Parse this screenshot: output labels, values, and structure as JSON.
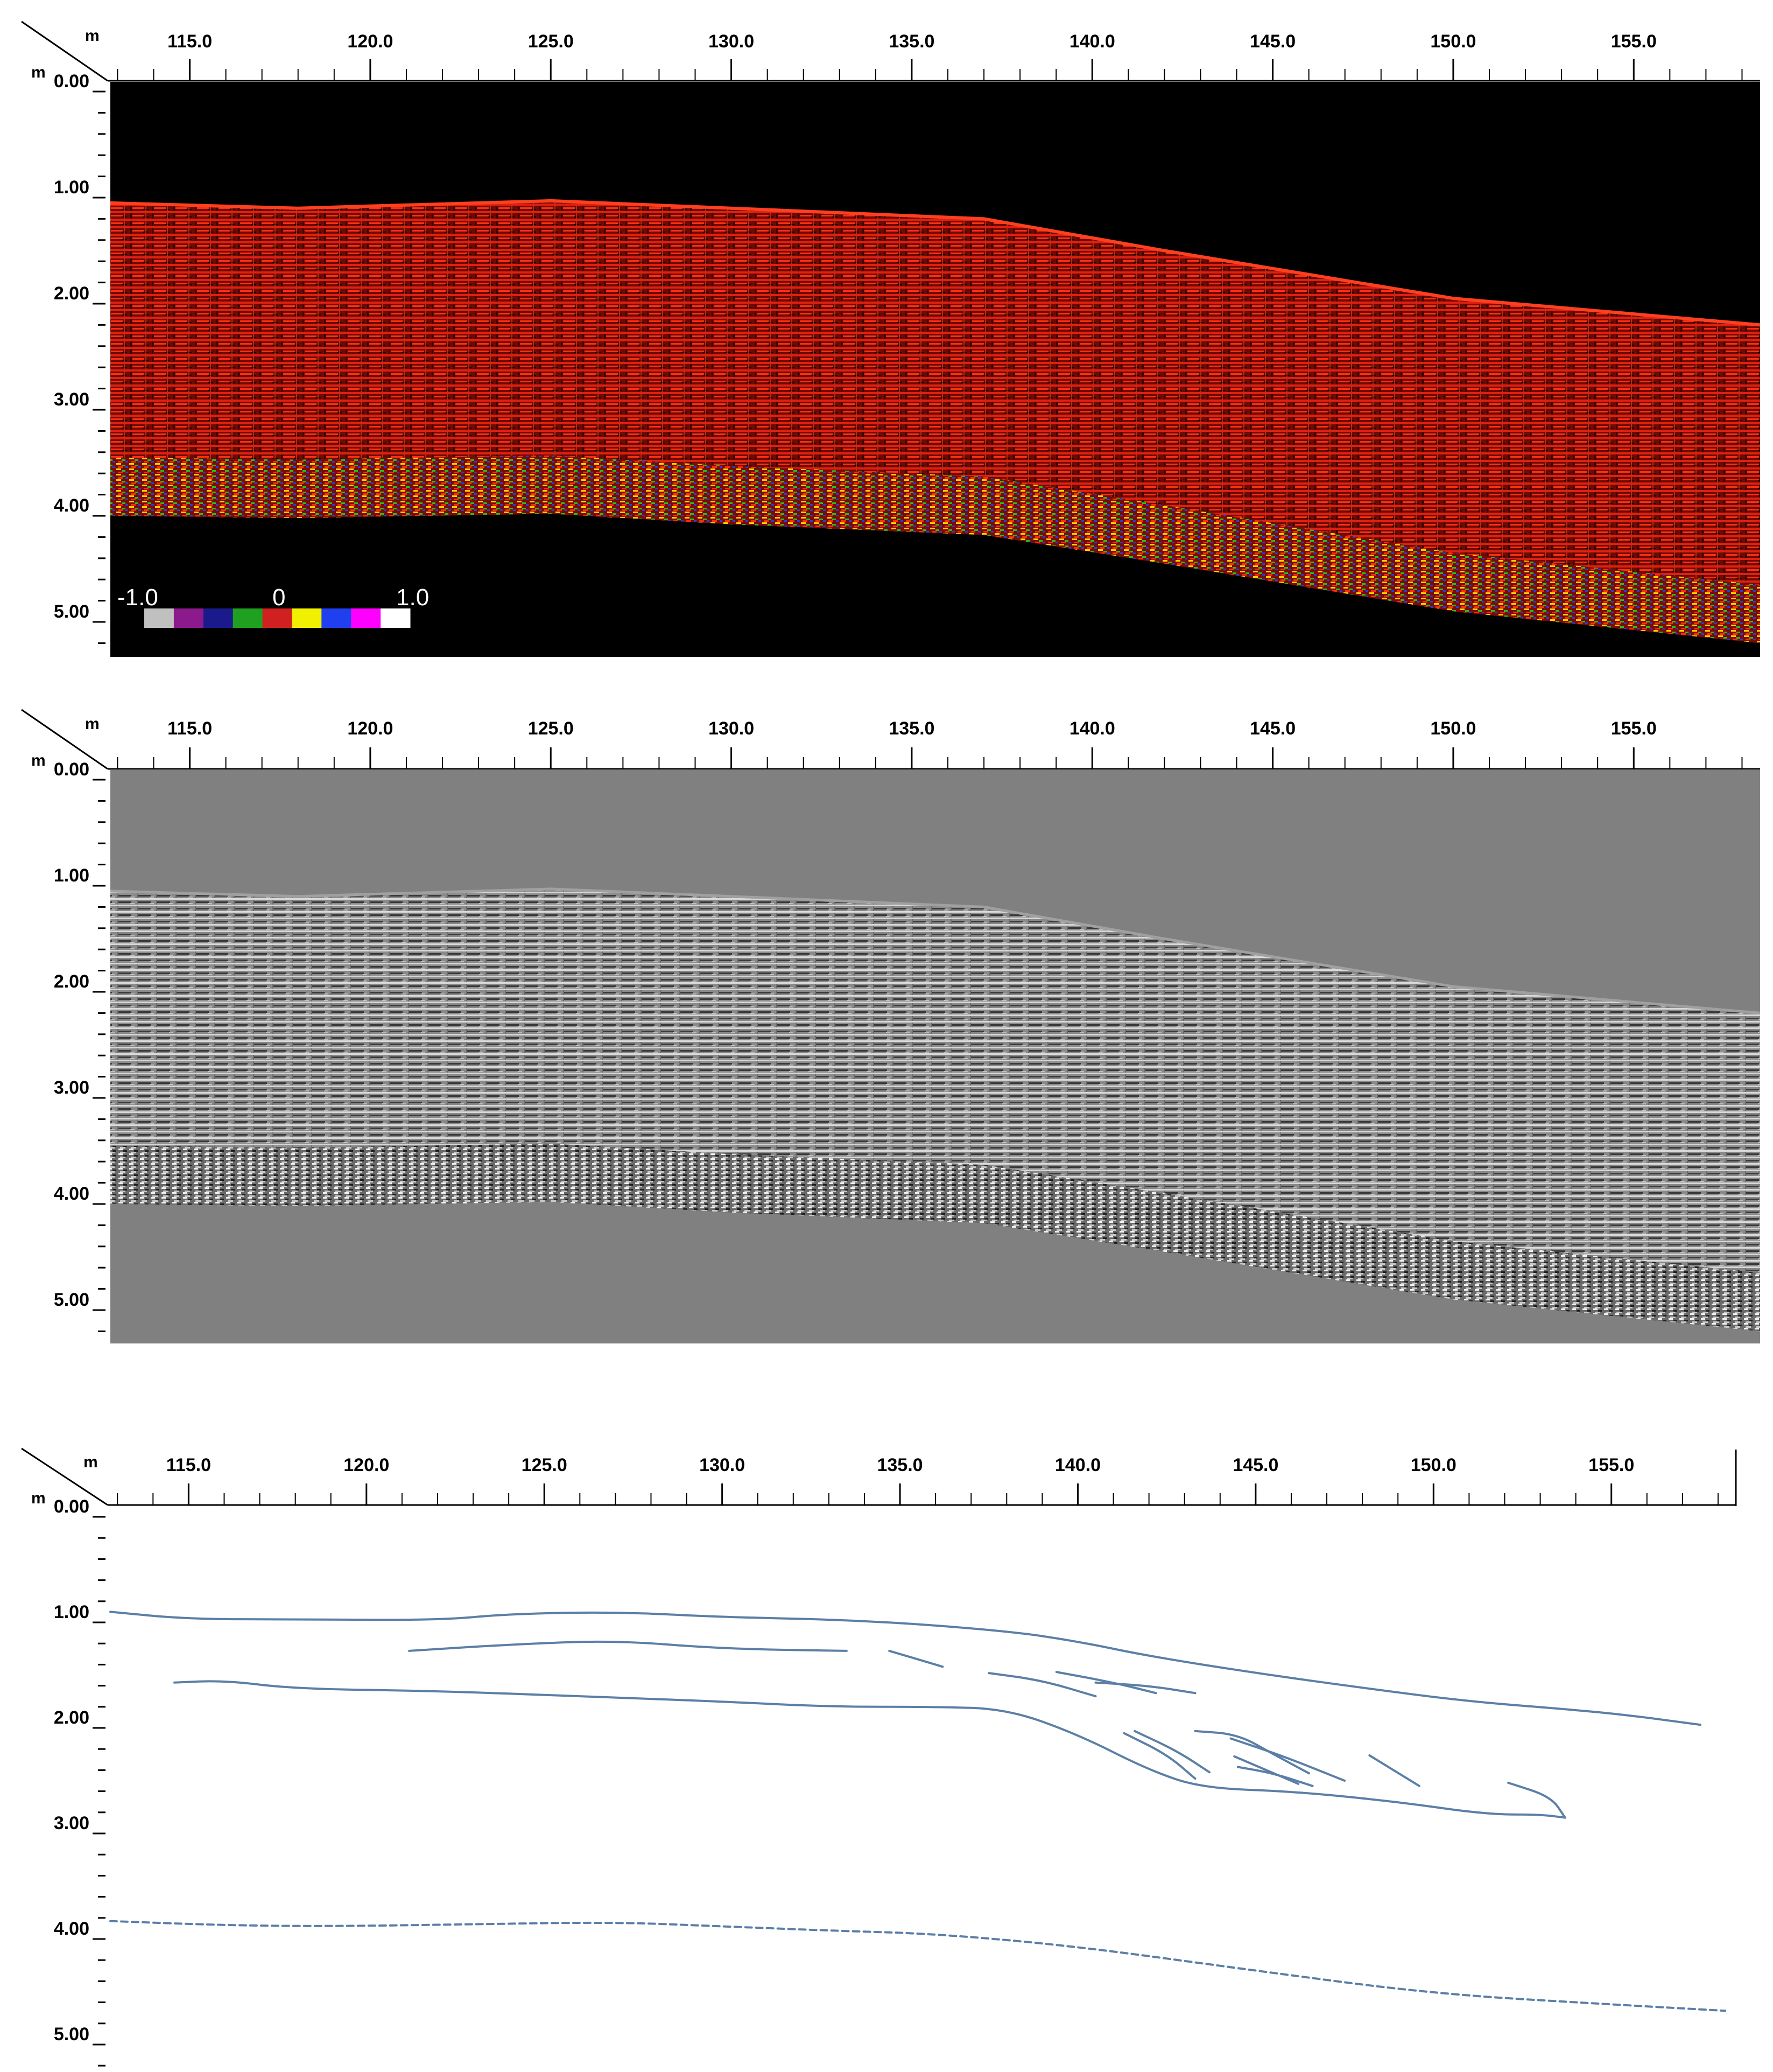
{
  "colors": {
    "panel_black": "#000000",
    "panel_gray": "#808080",
    "interpretation_line": "#5b7fa6",
    "axis": "#000000"
  },
  "chart_data": [
    {
      "type": "heatmap",
      "panel": "amplitude-colored-radargram",
      "xlabel": "m",
      "ylabel": "m",
      "xlim": [
        112.8,
        158.5
      ],
      "ylim": [
        5.5,
        0.0
      ],
      "x_ticks": [
        "115.0",
        "120.0",
        "125.0",
        "130.0",
        "135.0",
        "140.0",
        "145.0",
        "150.0",
        "155.0"
      ],
      "y_ticks": [
        "0.00",
        "1.00",
        "2.00",
        "3.00",
        "4.00",
        "5.00"
      ],
      "colorscale": {
        "min_label": "-1.0",
        "mid_label": "0",
        "max_label": "1.0",
        "colors": [
          "#c0c0c0",
          "#8c1a8c",
          "#1a1a8c",
          "#20a020",
          "#d02020",
          "#f0f000",
          "#2040f0",
          "#ff00ff",
          "#ffffff"
        ]
      },
      "top_surface": {
        "x": [
          112.8,
          118,
          125,
          130,
          137,
          142,
          150,
          158.5
        ],
        "y": [
          1.05,
          1.1,
          1.03,
          1.1,
          1.2,
          1.5,
          1.95,
          2.2
        ]
      },
      "bottom_surface": {
        "x": [
          112.8,
          118,
          125,
          130,
          137,
          142,
          150,
          158.5
        ],
        "y": [
          4.0,
          4.02,
          3.98,
          4.08,
          4.18,
          4.45,
          4.9,
          5.2
        ]
      }
    },
    {
      "type": "heatmap",
      "panel": "grayscale-radargram",
      "xlabel": "m",
      "ylabel": "m",
      "xlim": [
        112.8,
        158.5
      ],
      "ylim": [
        5.5,
        0.0
      ],
      "x_ticks": [
        "115.0",
        "120.0",
        "125.0",
        "130.0",
        "135.0",
        "140.0",
        "145.0",
        "150.0",
        "155.0"
      ],
      "y_ticks": [
        "0.00",
        "1.00",
        "2.00",
        "3.00",
        "4.00",
        "5.00"
      ],
      "top_surface": {
        "x": [
          112.8,
          118,
          125,
          130,
          137,
          142,
          150,
          158.5
        ],
        "y": [
          1.05,
          1.1,
          1.03,
          1.1,
          1.2,
          1.5,
          1.95,
          2.2
        ]
      },
      "bottom_surface": {
        "x": [
          112.8,
          118,
          125,
          130,
          137,
          142,
          150,
          158.5
        ],
        "y": [
          4.0,
          4.02,
          3.98,
          4.08,
          4.18,
          4.45,
          4.9,
          5.2
        ]
      }
    },
    {
      "type": "line",
      "panel": "interpretation",
      "xlabel": "m",
      "ylabel": "m",
      "xlim": [
        112.8,
        158.5
      ],
      "ylim": [
        5.5,
        0.0
      ],
      "x_ticks": [
        "115.0",
        "120.0",
        "125.0",
        "130.0",
        "135.0",
        "140.0",
        "145.0",
        "150.0",
        "155.0"
      ],
      "y_ticks": [
        "0.00",
        "1.00",
        "2.00",
        "3.00",
        "4.00",
        "5.00"
      ],
      "series": [
        {
          "style": "solid",
          "x": [
            112.8,
            115,
            118,
            122,
            124,
            127,
            130,
            134,
            138,
            140,
            142,
            145,
            148,
            151,
            154,
            155.5,
            157.5
          ],
          "y": [
            0.9,
            0.97,
            0.97,
            0.98,
            0.92,
            0.9,
            0.95,
            0.98,
            1.08,
            1.18,
            1.32,
            1.48,
            1.62,
            1.75,
            1.83,
            1.88,
            1.97
          ]
        },
        {
          "style": "solid",
          "x": [
            121.2,
            124,
            127,
            130,
            133.5
          ],
          "y": [
            1.27,
            1.21,
            1.17,
            1.25,
            1.27
          ]
        },
        {
          "style": "solid",
          "x": [
            134.7,
            136.2
          ],
          "y": [
            1.27,
            1.42
          ]
        },
        {
          "style": "solid",
          "x": [
            114.6,
            116,
            118,
            122,
            126,
            130,
            133,
            136,
            138,
            140,
            142,
            143.5,
            146,
            149,
            151.5,
            153,
            153.7
          ],
          "y": [
            1.57,
            1.55,
            1.63,
            1.65,
            1.7,
            1.75,
            1.8,
            1.8,
            1.82,
            2.06,
            2.4,
            2.57,
            2.6,
            2.7,
            2.82,
            2.82,
            2.85
          ]
        },
        {
          "style": "solid",
          "x": [
            137.5,
            139,
            140.5
          ],
          "y": [
            1.48,
            1.55,
            1.7
          ]
        },
        {
          "style": "solid",
          "x": [
            139.4,
            141,
            142.2
          ],
          "y": [
            1.47,
            1.57,
            1.67
          ]
        },
        {
          "style": "solid",
          "x": [
            140.5,
            142,
            143.3
          ],
          "y": [
            1.57,
            1.6,
            1.67
          ]
        },
        {
          "style": "solid",
          "x": [
            141.3,
            142.5,
            143.3
          ],
          "y": [
            2.05,
            2.25,
            2.48
          ]
        },
        {
          "style": "solid",
          "x": [
            141.6,
            142.8,
            143.7
          ],
          "y": [
            2.03,
            2.22,
            2.42
          ]
        },
        {
          "style": "solid",
          "x": [
            143.3,
            144.5,
            145.5,
            146.5
          ],
          "y": [
            2.03,
            2.06,
            2.25,
            2.43
          ]
        },
        {
          "style": "solid",
          "x": [
            144.3,
            145.8,
            147.5
          ],
          "y": [
            2.1,
            2.27,
            2.5
          ]
        },
        {
          "style": "solid",
          "x": [
            144.4,
            146.2
          ],
          "y": [
            2.27,
            2.53
          ]
        },
        {
          "style": "solid",
          "x": [
            144.5,
            145.5,
            146.6
          ],
          "y": [
            2.37,
            2.43,
            2.55
          ]
        },
        {
          "style": "solid",
          "x": [
            148.2,
            149.6
          ],
          "y": [
            2.26,
            2.55
          ]
        },
        {
          "style": "solid",
          "x": [
            152.1,
            153.3,
            153.7
          ],
          "y": [
            2.52,
            2.65,
            2.85
          ]
        },
        {
          "style": "dashed",
          "x": [
            112.8,
            116,
            119,
            123,
            127,
            130,
            133,
            136,
            140,
            145,
            150,
            155,
            158.2
          ],
          "y": [
            3.83,
            3.87,
            3.88,
            3.86,
            3.84,
            3.88,
            3.92,
            3.95,
            4.07,
            4.3,
            4.52,
            4.62,
            4.68
          ]
        }
      ]
    }
  ]
}
